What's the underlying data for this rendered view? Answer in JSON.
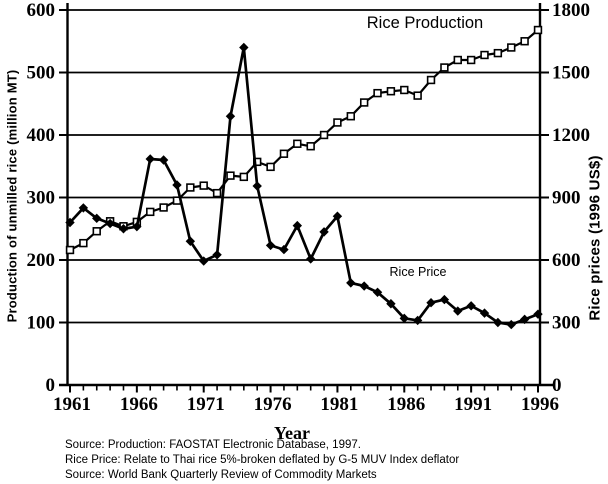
{
  "chart_data": {
    "type": "line",
    "title": "Rice Production",
    "x": [
      1961,
      1962,
      1963,
      1964,
      1965,
      1966,
      1967,
      1968,
      1969,
      1970,
      1971,
      1972,
      1973,
      1974,
      1975,
      1976,
      1977,
      1978,
      1979,
      1980,
      1981,
      1982,
      1983,
      1984,
      1985,
      1986,
      1987,
      1988,
      1989,
      1990,
      1991,
      1992,
      1993,
      1994,
      1995,
      1996
    ],
    "series": [
      {
        "name": "Rice Production",
        "axis": "left",
        "marker": "open-square",
        "color": "#000000",
        "values": [
          216,
          227,
          246,
          262,
          254,
          261,
          277,
          284,
          295,
          316,
          319,
          307,
          335,
          333,
          357,
          349,
          370,
          386,
          382,
          400,
          420,
          430,
          452,
          467,
          470,
          472,
          463,
          488,
          508,
          520,
          520,
          528,
          531,
          540,
          550,
          568
        ]
      },
      {
        "name": "Rice Price",
        "axis": "right",
        "marker": "filled-diamond",
        "color": "#000000",
        "values": [
          780,
          850,
          800,
          775,
          750,
          760,
          1085,
          1080,
          960,
          690,
          595,
          625,
          1290,
          1620,
          955,
          670,
          650,
          765,
          605,
          735,
          810,
          490,
          475,
          445,
          390,
          320,
          310,
          395,
          410,
          355,
          380,
          345,
          300,
          290,
          315,
          340
        ]
      }
    ],
    "left_axis": {
      "label": "Production of unmilled rice (million MT)",
      "min": 0,
      "max": 600,
      "ticks": [
        600,
        500,
        400,
        300,
        200,
        100,
        0
      ]
    },
    "right_axis": {
      "label": "Rice prices (1996 US$)",
      "min": 0,
      "max": 1800,
      "ticks": [
        1800,
        1500,
        1200,
        900,
        600,
        300,
        0
      ]
    },
    "x_axis": {
      "label": "Year",
      "min": 1961,
      "max": 1996,
      "tick_labels": [
        1961,
        1966,
        1971,
        1976,
        1981,
        1986,
        1991,
        1996
      ],
      "minor_tick_every": 1
    },
    "grid": "horizontal",
    "line_color": "#000000",
    "annotations": [
      {
        "text": "Rice Production",
        "x": 425,
        "y": 28,
        "size": 16.5
      },
      {
        "text": "Rice Price",
        "x": 418,
        "y": 276,
        "size": 12.5
      }
    ],
    "footnotes": [
      "Source: Production: FAOSTAT Electronic Database, 1997.",
      "Rice Price: Relate to Thai rice 5%-broken deflated by G-5 MUV Index deflator",
      "Source: World Bank Quarterly Review of Commodity Markets"
    ]
  }
}
